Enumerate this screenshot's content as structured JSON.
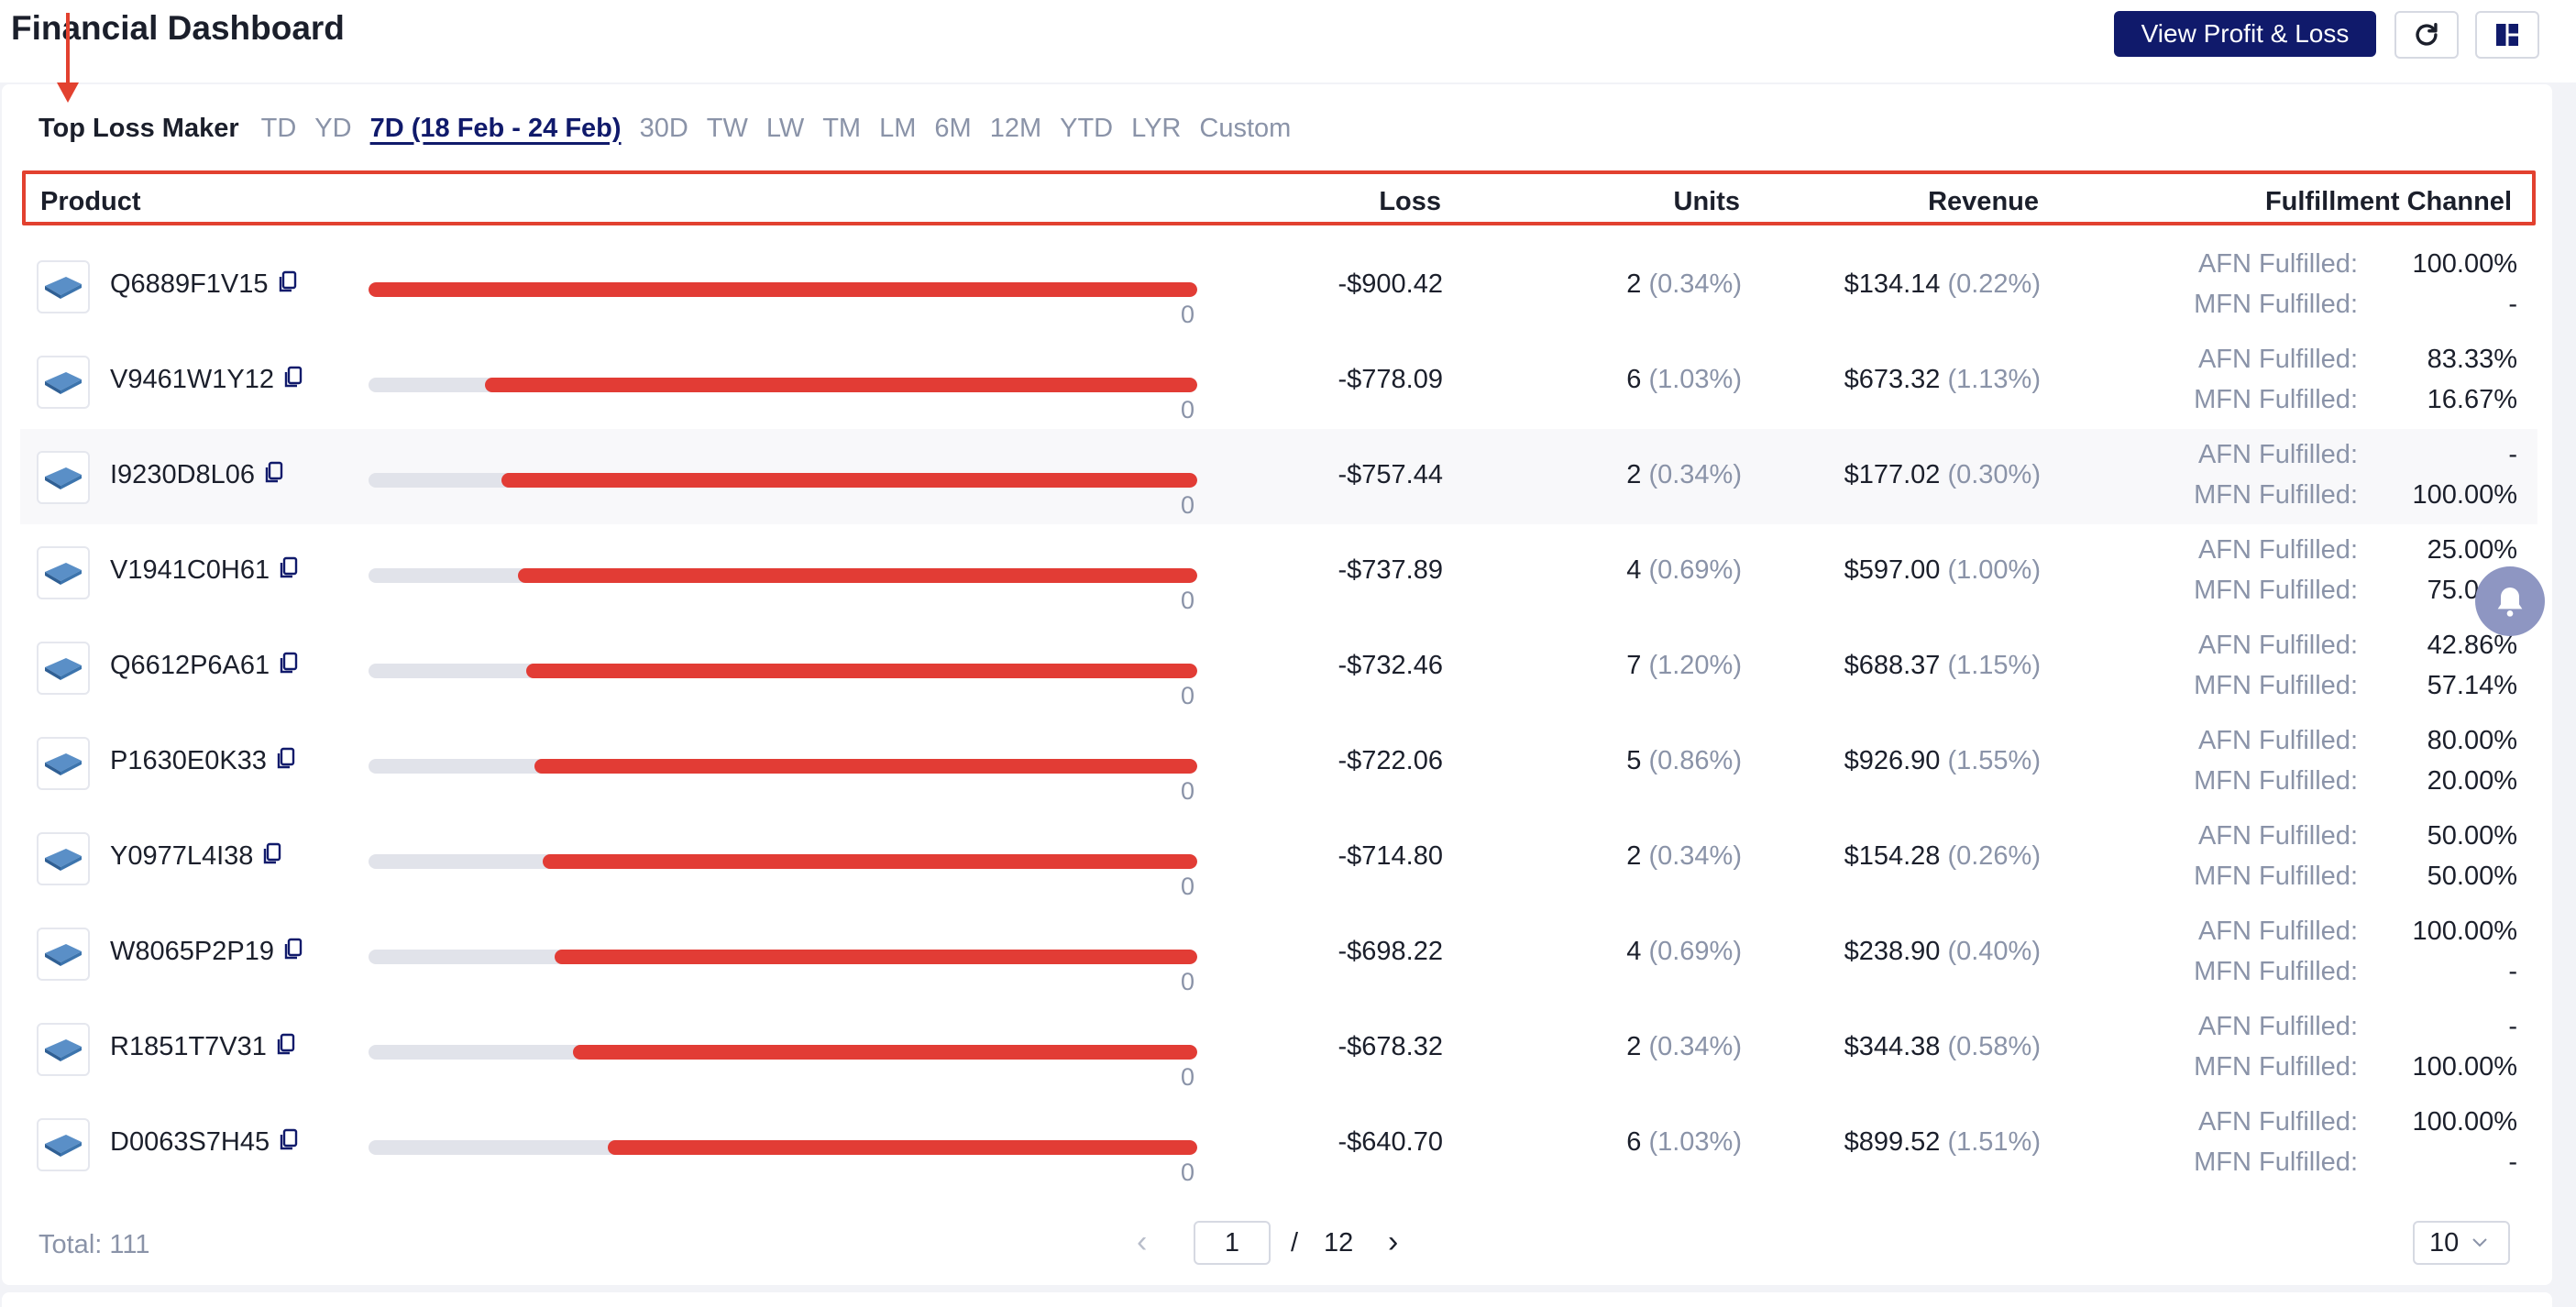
{
  "header": {
    "title": "Financial Dashboard",
    "view_pl_label": "View Profit & Loss",
    "refresh_icon": "refresh-icon",
    "layout_icon": "layout-icon"
  },
  "filters": {
    "label": "Top Loss Maker",
    "options": [
      "TD",
      "YD",
      "7D (18 Feb - 24 Feb)",
      "30D",
      "TW",
      "LW",
      "TM",
      "LM",
      "6M",
      "12M",
      "YTD",
      "LYR",
      "Custom"
    ],
    "active": "7D (18 Feb - 24 Feb)"
  },
  "table": {
    "headers": {
      "product": "Product",
      "loss": "Loss",
      "units": "Units",
      "revenue": "Revenue",
      "fulfillment": "Fulfillment Channel"
    },
    "afn_label": "AFN Fulfilled:",
    "mfn_label": "MFN Fulfilled:",
    "bar_zero_label": "0",
    "rows": [
      {
        "sku": "Q6889F1V15",
        "loss_share": 1.0,
        "loss": "-$900.42",
        "units": "2",
        "units_pct": "(0.34%)",
        "revenue": "$134.14",
        "revenue_pct": "(0.22%)",
        "afn": "100.00%",
        "mfn": "-"
      },
      {
        "sku": "V9461W1Y12",
        "loss_share": 0.86,
        "loss": "-$778.09",
        "units": "6",
        "units_pct": "(1.03%)",
        "revenue": "$673.32",
        "revenue_pct": "(1.13%)",
        "afn": "83.33%",
        "mfn": "16.67%"
      },
      {
        "sku": "I9230D8L06",
        "loss_share": 0.84,
        "loss": "-$757.44",
        "units": "2",
        "units_pct": "(0.34%)",
        "revenue": "$177.02",
        "revenue_pct": "(0.30%)",
        "afn": "-",
        "mfn": "100.00%"
      },
      {
        "sku": "V1941C0H61",
        "loss_share": 0.82,
        "loss": "-$737.89",
        "units": "4",
        "units_pct": "(0.69%)",
        "revenue": "$597.00",
        "revenue_pct": "(1.00%)",
        "afn": "25.00%",
        "mfn": "75.00%"
      },
      {
        "sku": "Q6612P6A61",
        "loss_share": 0.81,
        "loss": "-$732.46",
        "units": "7",
        "units_pct": "(1.20%)",
        "revenue": "$688.37",
        "revenue_pct": "(1.15%)",
        "afn": "42.86%",
        "mfn": "57.14%"
      },
      {
        "sku": "P1630E0K33",
        "loss_share": 0.8,
        "loss": "-$722.06",
        "units": "5",
        "units_pct": "(0.86%)",
        "revenue": "$926.90",
        "revenue_pct": "(1.55%)",
        "afn": "80.00%",
        "mfn": "20.00%"
      },
      {
        "sku": "Y0977L4I38",
        "loss_share": 0.79,
        "loss": "-$714.80",
        "units": "2",
        "units_pct": "(0.34%)",
        "revenue": "$154.28",
        "revenue_pct": "(0.26%)",
        "afn": "50.00%",
        "mfn": "50.00%"
      },
      {
        "sku": "W8065P2P19",
        "loss_share": 0.775,
        "loss": "-$698.22",
        "units": "4",
        "units_pct": "(0.69%)",
        "revenue": "$238.90",
        "revenue_pct": "(0.40%)",
        "afn": "100.00%",
        "mfn": "-"
      },
      {
        "sku": "R1851T7V31",
        "loss_share": 0.753,
        "loss": "-$678.32",
        "units": "2",
        "units_pct": "(0.34%)",
        "revenue": "$344.38",
        "revenue_pct": "(0.58%)",
        "afn": "-",
        "mfn": "100.00%"
      },
      {
        "sku": "D0063S7H45",
        "loss_share": 0.711,
        "loss": "-$640.70",
        "units": "6",
        "units_pct": "(1.03%)",
        "revenue": "$899.52",
        "revenue_pct": "(1.51%)",
        "afn": "100.00%",
        "mfn": "-"
      }
    ]
  },
  "footer": {
    "total": "Total: 111",
    "current_page": "1",
    "separator": "/",
    "total_pages": "12",
    "page_size": "10"
  },
  "colors": {
    "brand": "#101a6b",
    "loss_bar": "#e23c35",
    "highlight": "#e2412f"
  }
}
